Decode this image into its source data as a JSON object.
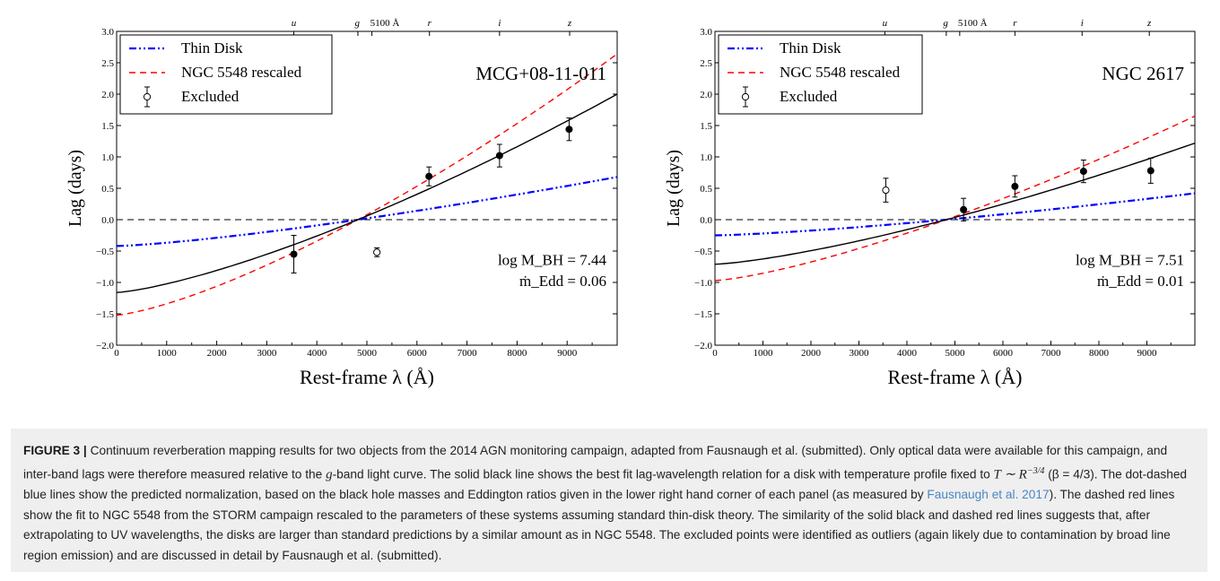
{
  "figure": {
    "label": "FIGURE 3 |",
    "caption": {
      "part1": " Continuum reverberation mapping results for two objects from the 2014 AGN monitoring campaign, adapted from Fausnaugh et al. (submitted). Only optical data were available for this campaign, and inter-band lags were therefore measured relative to the ",
      "g": "g",
      "part2": "-band light curve. The solid black line shows the best fit lag-wavelength relation for a disk with temperature profile fixed to ",
      "formula": "T ∼ R",
      "formula_exp": "−3/4",
      "part3": " (β = 4/3). The dot-dashed blue lines show the predicted normalization, based on the black hole masses and Eddington ratios given in the lower right hand corner of each panel (as measured by ",
      "ref": "Fausnaugh et al. 2017",
      "part4": "). The dashed red lines show the fit to NGC 5548 from the STORM campaign rescaled to the parameters of these systems assuming standard thin-disk theory. The similarity of the solid black and dashed red lines suggests that, after extrapolating to UV wavelengths, the disks are larger than standard predictions by a similar amount as in NGC 5548. The excluded points were identified as outliers (again likely due to contamination by broad line region emission) and are discussed in detail by Fausnaugh et al. (submitted)."
    }
  },
  "colors": {
    "thin_disk": "#0000ff",
    "ngc5548": "#ff0000",
    "fit": "#000000",
    "caption_bg": "#efefef",
    "link": "#4a86c5"
  },
  "chart_data": [
    {
      "type": "scatter",
      "title": "MCG+08-11-011",
      "xlabel": "Rest-frame λ (Å)",
      "ylabel": "Lag (days)",
      "xlim": [
        0,
        10000
      ],
      "ylim": [
        -2.0,
        3.0
      ],
      "xticks": [
        "0",
        "1000",
        "2000",
        "3000",
        "4000",
        "5000",
        "6000",
        "7000",
        "8000",
        "9000"
      ],
      "yticks": [
        "−2.0",
        "−1.5",
        "−1.0",
        "−0.5",
        "0.0",
        "0.5",
        "1.0",
        "1.5",
        "2.0",
        "2.5",
        "3.0"
      ],
      "top_axis": [
        {
          "label": "u",
          "x": 3540
        },
        {
          "label": "g",
          "x": 4820
        },
        {
          "label": "5100 Å",
          "x": 5100
        },
        {
          "label": "r",
          "x": 6250
        },
        {
          "label": "i",
          "x": 7650
        },
        {
          "label": "z",
          "x": 9050
        }
      ],
      "legend": {
        "placement": "top-left",
        "entries": [
          "Thin Disk",
          "NGC 5548 rescaled",
          "Excluded"
        ]
      },
      "annotation": {
        "mass_label": "log M_BH = 7.44",
        "mdot_label": "ṁ_Edd = 0.06"
      },
      "points": [
        {
          "x": 3540,
          "y": -0.55,
          "err": 0.3
        },
        {
          "x": 6240,
          "y": 0.69,
          "err": 0.15
        },
        {
          "x": 7650,
          "y": 1.02,
          "err": 0.18
        },
        {
          "x": 9040,
          "y": 1.44,
          "err": 0.18
        }
      ],
      "excluded_points": [
        {
          "x": 5200,
          "y": -0.52,
          "err": 0.07
        }
      ],
      "series": [
        {
          "name": "Thin Disk",
          "lambda0": 4820,
          "y_at_0": -0.42,
          "y_at_10000": 0.68
        },
        {
          "name": "NGC 5548 rescaled",
          "lambda0": 4820,
          "y_at_0": -1.52,
          "y_at_10000": 2.64
        },
        {
          "lambda0": 4820,
          "y_at_0": -1.16,
          "y_at_10000": 2.0
        }
      ]
    },
    {
      "type": "scatter",
      "title": "NGC 2617",
      "xlabel": "Rest-frame λ (Å)",
      "ylabel": "Lag (days)",
      "xlim": [
        0,
        10000
      ],
      "ylim": [
        -2.0,
        3.0
      ],
      "xticks": [
        "0",
        "1000",
        "2000",
        "3000",
        "4000",
        "5000",
        "6000",
        "7000",
        "8000",
        "9000"
      ],
      "yticks": [
        "−2.0",
        "−1.5",
        "−1.0",
        "−0.5",
        "0.0",
        "0.5",
        "1.0",
        "1.5",
        "2.0",
        "2.5",
        "3.0"
      ],
      "top_axis": [
        {
          "label": "u",
          "x": 3540
        },
        {
          "label": "g",
          "x": 4820
        },
        {
          "label": "5100 Å",
          "x": 5100
        },
        {
          "label": "r",
          "x": 6250
        },
        {
          "label": "i",
          "x": 7650
        },
        {
          "label": "z",
          "x": 9050
        }
      ],
      "legend": {
        "placement": "top-left",
        "entries": [
          "Thin Disk",
          "NGC 5548 rescaled",
          "Excluded"
        ]
      },
      "annotation": {
        "mass_label": "log M_BH = 7.51",
        "mdot_label": "ṁ_Edd = 0.01"
      },
      "points": [
        {
          "x": 5180,
          "y": 0.16,
          "err": 0.18
        },
        {
          "x": 6250,
          "y": 0.53,
          "err": 0.17
        },
        {
          "x": 7680,
          "y": 0.77,
          "err": 0.18
        },
        {
          "x": 9080,
          "y": 0.78,
          "err": 0.2
        }
      ],
      "excluded_points": [
        {
          "x": 3560,
          "y": 0.47,
          "err": 0.19
        }
      ],
      "series": [
        {
          "name": "Thin Disk",
          "lambda0": 4820,
          "y_at_0": -0.25,
          "y_at_10000": 0.42
        },
        {
          "name": "NGC 5548 rescaled",
          "lambda0": 4820,
          "y_at_0": -0.97,
          "y_at_10000": 1.65
        },
        {
          "lambda0": 4820,
          "y_at_0": -0.71,
          "y_at_10000": 1.22
        }
      ]
    }
  ]
}
